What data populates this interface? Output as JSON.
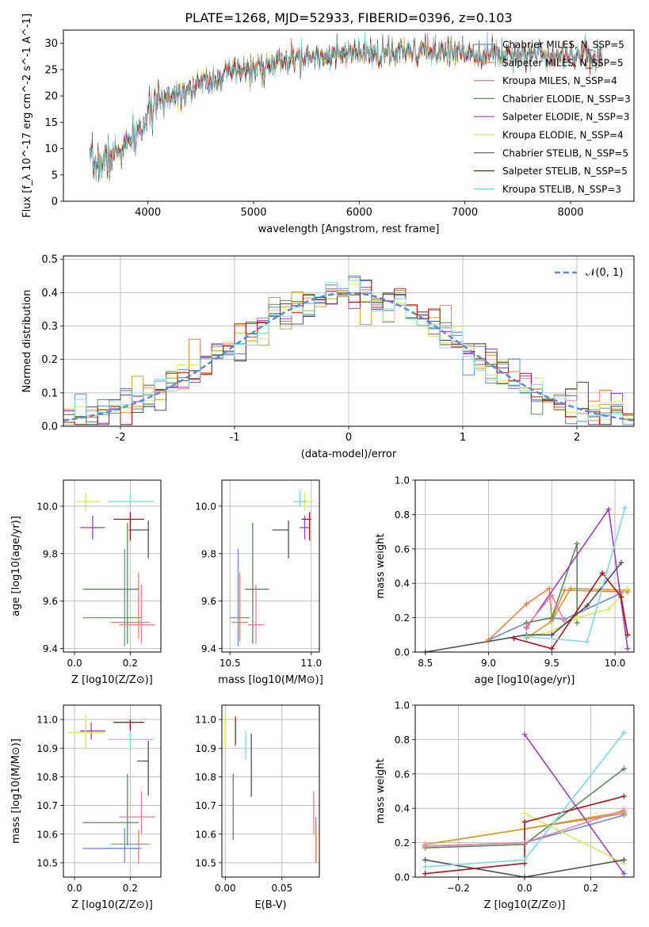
{
  "figure": {
    "title": "PLATE=1268, MJD=52933, FIBERID=0396, z=0.103"
  },
  "chart_data": [
    {
      "id": "spectrum",
      "type": "line",
      "title": "PLATE=1268, MJD=52933, FIBERID=0396, z=0.103",
      "xlabel": "wavelength [Angstrom, rest frame]",
      "ylabel": "Flux [f_λ 10^-17 erg cm^-2 s^-1 A^-1]",
      "xlim": [
        3200,
        8600
      ],
      "ylim": [
        0,
        32.5
      ],
      "xticks": [
        4000,
        5000,
        6000,
        7000,
        8000
      ],
      "yticks": [
        0,
        5,
        10,
        15,
        20,
        25,
        30
      ],
      "legend_position": "top-right",
      "series": [
        {
          "name": "Chabrier MILES, N_SSP=5",
          "color": "#6a88d4"
        },
        {
          "name": "Salpeter MILES, N_SSP=5",
          "color": "#e8824a"
        },
        {
          "name": "Kroupa MILES, N_SSP=4",
          "color": "#c8a030"
        },
        {
          "name": "Chabrier ELODIE, N_SSP=3",
          "color": "#5a8a5a"
        },
        {
          "name": "Salpeter ELODIE, N_SSP=3",
          "color": "#9b3fb5"
        },
        {
          "name": "Kroupa ELODIE, N_SSP=4",
          "color": "#d8e860"
        },
        {
          "name": "Chabrier STELIB, N_SSP=5",
          "color": "#505050"
        },
        {
          "name": "Salpeter STELIB, N_SSP=5",
          "color": "#a01818"
        },
        {
          "name": "Kroupa STELIB, N_SSP=3",
          "color": "#80d8e0"
        }
      ],
      "continuum": {
        "x": [
          3450,
          3600,
          3800,
          3950,
          4050,
          4200,
          4400,
          4600,
          4800,
          5000,
          5200,
          5400,
          5600,
          5800,
          6000,
          6200,
          6400,
          6600,
          6800,
          7000,
          7200,
          7400,
          7600,
          7800,
          8000,
          8200,
          8300
        ],
        "y": [
          7,
          7.5,
          10.5,
          14,
          18,
          20,
          21.5,
          23,
          24.5,
          25,
          26,
          27,
          27.5,
          27.8,
          28,
          28,
          28,
          28.5,
          28.5,
          28.5,
          28,
          28,
          28,
          28,
          27.8,
          27.5,
          27
        ]
      }
    },
    {
      "id": "residuals",
      "type": "line",
      "xlabel": "(data-model)/error",
      "ylabel": "Normed distribution",
      "xlim": [
        -2.5,
        2.5
      ],
      "ylim": [
        0,
        0.51
      ],
      "xticks": [
        -2,
        -1,
        0,
        1,
        2
      ],
      "yticks": [
        0.0,
        0.1,
        0.2,
        0.3,
        0.4,
        0.5
      ],
      "legend_position": "top-right",
      "reference_curve": {
        "name": "𝒩(0, 1)",
        "color": "#5b8bd6"
      }
    },
    {
      "id": "age-vs-Z",
      "type": "scatter",
      "xlabel": "Z [log10(Z/Z⊙)]",
      "ylabel": "age [log10(age/yr)]",
      "xlim": [
        -0.04,
        0.31
      ],
      "ylim": [
        9.385,
        10.11
      ],
      "xticks": [
        0.0,
        0.2
      ],
      "yticks": [
        9.4,
        9.6,
        9.8,
        10.0
      ],
      "points": [
        {
          "series": "Chabrier MILES",
          "x": 0.18,
          "y": 9.53,
          "xerr": [
            0.15,
            0.06
          ],
          "yerr": [
            0.12,
            0.29
          ]
        },
        {
          "series": "Salpeter MILES",
          "x": 0.23,
          "y": 9.51,
          "xerr": [
            0.1,
            0.04
          ],
          "yerr": [
            0.07,
            0.21
          ]
        },
        {
          "series": "Chabrier ELODIE",
          "x": 0.19,
          "y": 9.65,
          "xerr": [
            0.16,
            0.04
          ],
          "yerr": [
            0.23,
            0.28
          ]
        },
        {
          "series": "Salpeter ELODIE",
          "x": 0.065,
          "y": 9.91,
          "xerr": [
            0.045,
            0.045
          ],
          "yerr": [
            0.05,
            0.05
          ]
        },
        {
          "series": "Kroupa ELODIE",
          "x": 0.04,
          "y": 10.02,
          "xerr": [
            0.03,
            0.055
          ],
          "yerr": [
            0.04,
            0.04
          ]
        },
        {
          "series": "Chabrier STELIB",
          "x": 0.265,
          "y": 9.9,
          "xerr": [
            0.07,
            0.0
          ],
          "yerr": [
            0.12,
            0.04
          ]
        },
        {
          "series": "Salpeter STELIB",
          "x": 0.2,
          "y": 9.945,
          "xerr": [
            0.06,
            0.05
          ],
          "yerr": [
            0.09,
            0.03
          ]
        },
        {
          "series": "Kroupa STELIB",
          "x": 0.2,
          "y": 10.02,
          "xerr": [
            0.08,
            0.085
          ],
          "yerr": [
            0.02,
            0.03
          ]
        },
        {
          "series": "pink",
          "x": 0.24,
          "y": 9.5,
          "xerr": [
            0.08,
            0.05
          ],
          "yerr": [
            0.08,
            0.17
          ]
        }
      ]
    },
    {
      "id": "age-vs-mass",
      "type": "scatter",
      "xlabel": "mass [log10(M/M⊙)]",
      "ylabel": "",
      "xlim": [
        10.45,
        11.05
      ],
      "ylim": [
        9.385,
        10.11
      ],
      "xticks": [
        10.5,
        11.0
      ],
      "yticks": [
        9.4,
        9.6,
        9.8,
        10.0
      ],
      "points": [
        {
          "series": "Chabrier MILES",
          "x": 10.55,
          "y": 9.53,
          "xerr": [
            0.05,
            0.07
          ],
          "yerr": [
            0.12,
            0.29
          ]
        },
        {
          "series": "Salpeter MILES",
          "x": 10.56,
          "y": 9.51,
          "xerr": [
            0.05,
            0.05
          ],
          "yerr": [
            0.08,
            0.21
          ]
        },
        {
          "series": "Chabrier ELODIE",
          "x": 10.64,
          "y": 9.65,
          "xerr": [
            0.05,
            0.1
          ],
          "yerr": [
            0.23,
            0.28
          ]
        },
        {
          "series": "Salpeter ELODIE",
          "x": 10.96,
          "y": 9.91,
          "xerr": [
            0.03,
            0.03
          ],
          "yerr": [
            0.05,
            0.05
          ]
        },
        {
          "series": "Kroupa ELODIE",
          "x": 10.96,
          "y": 10.02,
          "xerr": [
            0.05,
            0.05
          ],
          "yerr": [
            0.04,
            0.04
          ]
        },
        {
          "series": "Chabrier STELIB",
          "x": 10.86,
          "y": 9.9,
          "xerr": [
            0.1,
            0.0
          ],
          "yerr": [
            0.12,
            0.04
          ]
        },
        {
          "series": "Salpeter STELIB",
          "x": 10.99,
          "y": 9.945,
          "xerr": [
            0.05,
            0.01
          ],
          "yerr": [
            0.09,
            0.03
          ]
        },
        {
          "series": "Kroupa STELIB",
          "x": 10.93,
          "y": 10.02,
          "xerr": [
            0.04,
            0.04
          ],
          "yerr": [
            0.02,
            0.05
          ]
        },
        {
          "series": "pink",
          "x": 10.66,
          "y": 9.5,
          "xerr": [
            0.05,
            0.05
          ],
          "yerr": [
            0.08,
            0.17
          ]
        }
      ]
    },
    {
      "id": "weight-vs-age",
      "type": "line",
      "xlabel": "age [log10(age/yr)]",
      "ylabel": "mass weight",
      "xlim": [
        8.42,
        10.15
      ],
      "ylim": [
        0,
        1.0
      ],
      "xticks": [
        8.5,
        9.0,
        9.5,
        10.0
      ],
      "yticks": [
        0.0,
        0.2,
        0.4,
        0.6,
        0.8,
        1.0
      ],
      "series": [
        {
          "name": "Chabrier MILES",
          "x": [
            9.0,
            9.3,
            9.5,
            9.6,
            10.1
          ],
          "y": [
            0.07,
            0.17,
            0.2,
            0.19,
            0.36
          ]
        },
        {
          "name": "Salpeter MILES",
          "x": [
            9.0,
            9.3,
            9.48,
            9.5,
            9.6,
            10.1
          ],
          "y": [
            0.07,
            0.28,
            0.37,
            0.19,
            0.36,
            0.35
          ]
        },
        {
          "name": "Kroupa MILES",
          "x": [
            9.3,
            9.5,
            9.65,
            10.1
          ],
          "y": [
            0.08,
            0.18,
            0.37,
            0.36
          ]
        },
        {
          "name": "Chabrier ELODIE",
          "x": [
            9.3,
            9.5,
            9.7,
            9.7
          ],
          "y": [
            0.17,
            0.2,
            0.63,
            0.17
          ]
        },
        {
          "name": "Salpeter ELODIE",
          "x": [
            9.3,
            9.95,
            10.1
          ],
          "y": [
            0.14,
            0.83,
            0.02
          ]
        },
        {
          "name": "Kroupa ELODIE",
          "x": [
            9.3,
            9.5,
            9.7,
            9.95,
            10.1
          ],
          "y": [
            0.09,
            0.12,
            0.2,
            0.25,
            0.37
          ]
        },
        {
          "name": "Chabrier STELIB",
          "x": [
            8.5,
            9.3,
            9.5,
            9.78,
            10.05
          ],
          "y": [
            0.0,
            0.1,
            0.1,
            0.27,
            0.52
          ]
        },
        {
          "name": "Salpeter STELIB",
          "x": [
            9.2,
            9.5,
            9.9,
            10.05,
            10.1
          ],
          "y": [
            0.08,
            0.02,
            0.46,
            0.32,
            0.1
          ]
        },
        {
          "name": "Kroupa STELIB",
          "x": [
            9.3,
            9.78,
            10.08
          ],
          "y": [
            0.09,
            0.06,
            0.84
          ]
        },
        {
          "name": "pink",
          "x": [
            9.3,
            9.5,
            9.6
          ],
          "y": [
            0.15,
            0.33,
            0.18
          ]
        }
      ]
    },
    {
      "id": "mass-vs-Z",
      "type": "scatter",
      "xlabel": "Z [log10(Z/Z⊙)]",
      "ylabel": "mass [log10(M/M⊙)]",
      "xlim": [
        -0.04,
        0.31
      ],
      "ylim": [
        10.45,
        11.05
      ],
      "xticks": [
        0.0,
        0.2
      ],
      "yticks": [
        10.5,
        10.6,
        10.7,
        10.8,
        10.9,
        11.0
      ],
      "points": [
        {
          "series": "Chabrier MILES",
          "x": 0.18,
          "y": 10.55,
          "xerr": [
            0.15,
            0.06
          ],
          "yerr": [
            0.05,
            0.07
          ]
        },
        {
          "series": "Salpeter MILES",
          "x": 0.23,
          "y": 10.565,
          "xerr": [
            0.1,
            0.04
          ],
          "yerr": [
            0.07,
            0.05
          ]
        },
        {
          "series": "Chabrier ELODIE",
          "x": 0.19,
          "y": 10.64,
          "xerr": [
            0.16,
            0.04
          ],
          "yerr": [
            0.08,
            0.17
          ]
        },
        {
          "series": "Salpeter ELODIE",
          "x": 0.06,
          "y": 10.96,
          "xerr": [
            0.04,
            0.05
          ],
          "yerr": [
            0.03,
            0.03
          ]
        },
        {
          "series": "Kroupa ELODIE",
          "x": 0.04,
          "y": 10.955,
          "xerr": [
            0.06,
            0.07
          ],
          "yerr": [
            0.06,
            0.06
          ]
        },
        {
          "series": "Chabrier STELIB",
          "x": 0.265,
          "y": 10.855,
          "xerr": [
            0.04,
            0.0
          ],
          "yerr": [
            0.12,
            0.07
          ]
        },
        {
          "series": "Salpeter STELIB",
          "x": 0.2,
          "y": 10.99,
          "xerr": [
            0.06,
            0.05
          ],
          "yerr": [
            0.03,
            0.01
          ]
        },
        {
          "series": "Kroupa STELIB",
          "x": 0.2,
          "y": 10.93,
          "xerr": [
            0.08,
            0.085
          ],
          "yerr": [
            0.04,
            0.03
          ]
        },
        {
          "series": "pink",
          "x": 0.24,
          "y": 10.66,
          "xerr": [
            0.08,
            0.05
          ],
          "yerr": [
            0.06,
            0.09
          ]
        }
      ]
    },
    {
      "id": "mass-vs-EBV",
      "type": "scatter",
      "xlabel": "E(B-V)",
      "ylabel": "",
      "xlim": [
        -0.003,
        0.083
      ],
      "ylim": [
        10.45,
        11.05
      ],
      "xticks": [
        0.0,
        0.05
      ],
      "yticks": [
        10.5,
        10.6,
        10.7,
        10.8,
        10.9,
        11.0
      ],
      "points": [
        {
          "series": "Chabrier MILES",
          "x": 0.08,
          "y": 10.56,
          "xerr": [
            0.0,
            0.0
          ],
          "yerr": [
            0.05,
            0.1
          ]
        },
        {
          "series": "Salpeter MILES",
          "x": 0.08,
          "y": 10.5,
          "xerr": [
            0.0,
            0.0
          ],
          "yerr": [
            0.0,
            0.14
          ]
        },
        {
          "series": "Chabrier ELODIE",
          "x": 0.007,
          "y": 10.67,
          "xerr": [
            0.0,
            0.0
          ],
          "yerr": [
            0.09,
            0.14
          ]
        },
        {
          "series": "Kroupa ELODIE",
          "x": 0.0,
          "y": 10.96,
          "xerr": [
            0.0,
            0.0
          ],
          "yerr": [
            0.06,
            0.06
          ]
        },
        {
          "series": "Chabrier STELIB",
          "x": 0.023,
          "y": 10.85,
          "xerr": [
            0.0,
            0.0
          ],
          "yerr": [
            0.12,
            0.1
          ]
        },
        {
          "series": "Salpeter STELIB",
          "x": 0.009,
          "y": 10.96,
          "xerr": [
            0.0,
            0.0
          ],
          "yerr": [
            0.05,
            0.05
          ]
        },
        {
          "series": "Kroupa STELIB",
          "x": 0.018,
          "y": 10.9,
          "xerr": [
            0.0,
            0.0
          ],
          "yerr": [
            0.04,
            0.06
          ]
        },
        {
          "series": "pink",
          "x": 0.078,
          "y": 10.68,
          "xerr": [
            0.0,
            0.0
          ],
          "yerr": [
            0.08,
            0.07
          ]
        }
      ]
    },
    {
      "id": "weight-vs-Z",
      "type": "line",
      "xlabel": "Z [log10(Z/Z⊙)]",
      "ylabel": "mass weight",
      "xlim": [
        -0.33,
        0.33
      ],
      "ylim": [
        0,
        1.0
      ],
      "xticks": [
        -0.2,
        0.0,
        0.2
      ],
      "yticks": [
        0.0,
        0.2,
        0.4,
        0.6,
        0.8,
        1.0
      ],
      "series": [
        {
          "name": "Chabrier MILES",
          "x": [
            -0.3,
            0.0,
            0.3
          ],
          "y": [
            0.18,
            0.2,
            0.36
          ]
        },
        {
          "name": "Salpeter MILES",
          "x": [
            -0.3,
            0.0,
            0.3
          ],
          "y": [
            0.19,
            0.28,
            0.37
          ]
        },
        {
          "name": "Kroupa MILES",
          "x": [
            -0.3,
            0.0,
            0.3
          ],
          "y": [
            0.19,
            0.28,
            0.38
          ]
        },
        {
          "name": "Chabrier ELODIE",
          "x": [
            -0.3,
            0.0,
            0.3
          ],
          "y": [
            0.17,
            0.19,
            0.63
          ]
        },
        {
          "name": "Salpeter ELODIE",
          "x": [
            0.0,
            0.3
          ],
          "y": [
            0.83,
            0.02
          ]
        },
        {
          "name": "Kroupa ELODIE",
          "x": [
            0.0,
            0.3
          ],
          "y": [
            0.37,
            0.08
          ]
        },
        {
          "name": "Chabrier STELIB",
          "x": [
            -0.3,
            0.0,
            0.3
          ],
          "y": [
            0.1,
            0.0,
            0.1
          ]
        },
        {
          "name": "Salpeter STELIB",
          "x": [
            -0.3,
            0.0,
            0.0,
            0.3
          ],
          "y": [
            0.02,
            0.08,
            0.32,
            0.47
          ]
        },
        {
          "name": "Kroupa STELIB",
          "x": [
            -0.3,
            0.0,
            0.3
          ],
          "y": [
            0.06,
            0.1,
            0.84
          ]
        },
        {
          "name": "pink",
          "x": [
            -0.3,
            0.0,
            0.3
          ],
          "y": [
            0.18,
            0.2,
            0.39
          ]
        }
      ]
    }
  ]
}
